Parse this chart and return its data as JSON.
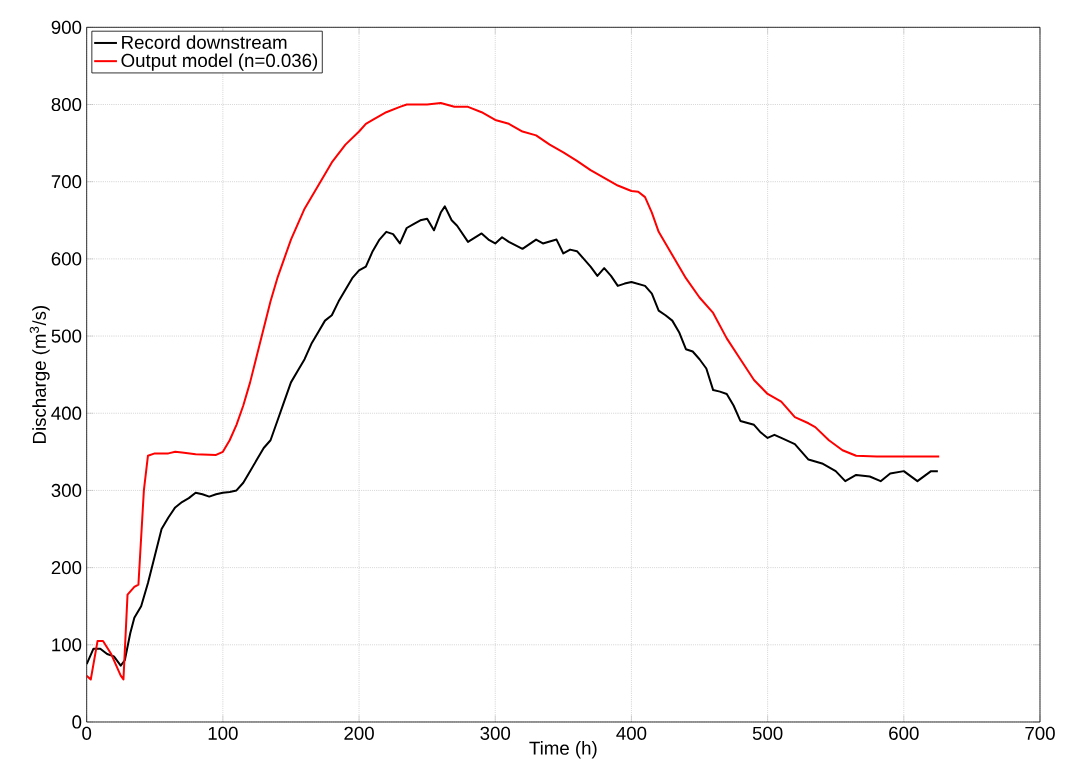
{
  "chart_data": {
    "type": "line",
    "xlabel": "Time (h)",
    "ylabel": "Discharge (m$^{3}$/s)",
    "xlim": [
      0,
      700
    ],
    "ylim": [
      0,
      900
    ],
    "xticks": [
      0,
      100,
      200,
      300,
      400,
      500,
      600,
      700
    ],
    "yticks": [
      0,
      100,
      200,
      300,
      400,
      500,
      600,
      700,
      800,
      900
    ],
    "grid": true,
    "legend": "top left",
    "line_style": "solid",
    "marker": "none",
    "series": [
      {
        "name": "Record downstream",
        "color": "#000000",
        "x": [
          0,
          5,
          10,
          15,
          20,
          25,
          28,
          32,
          35,
          40,
          45,
          50,
          55,
          60,
          65,
          70,
          75,
          80,
          85,
          90,
          95,
          100,
          105,
          110,
          115,
          120,
          125,
          130,
          135,
          140,
          145,
          150,
          155,
          160,
          165,
          170,
          175,
          180,
          185,
          190,
          195,
          200,
          205,
          210,
          215,
          220,
          225,
          230,
          235,
          240,
          245,
          250,
          255,
          260,
          263,
          268,
          272,
          280,
          290,
          295,
          300,
          305,
          310,
          320,
          330,
          335,
          345,
          350,
          355,
          360,
          365,
          370,
          375,
          380,
          385,
          390,
          395,
          400,
          410,
          415,
          420,
          425,
          430,
          435,
          440,
          445,
          450,
          455,
          460,
          465,
          470,
          475,
          480,
          490,
          495,
          500,
          505,
          510,
          520,
          530,
          540,
          550,
          557,
          565,
          575,
          583,
          590,
          600,
          610,
          620,
          625
        ],
        "values": [
          75,
          95,
          95,
          88,
          85,
          73,
          80,
          115,
          135,
          150,
          180,
          215,
          250,
          265,
          278,
          285,
          290,
          297,
          295,
          292,
          295,
          297,
          298,
          300,
          310,
          325,
          340,
          355,
          365,
          390,
          415,
          440,
          455,
          470,
          490,
          505,
          520,
          527,
          545,
          560,
          575,
          585,
          590,
          610,
          625,
          635,
          632,
          620,
          640,
          645,
          650,
          652,
          637,
          660,
          668,
          650,
          643,
          622,
          633,
          625,
          620,
          628,
          622,
          613,
          625,
          620,
          625,
          607,
          612,
          610,
          600,
          590,
          578,
          588,
          578,
          565,
          568,
          570,
          565,
          555,
          533,
          527,
          520,
          505,
          483,
          480,
          470,
          458,
          430,
          428,
          425,
          410,
          390,
          385,
          375,
          368,
          372,
          368,
          360,
          340,
          335,
          325,
          312,
          320,
          318,
          312,
          322,
          325,
          312,
          325,
          325
        ]
      },
      {
        "name": "Output model (n=0.036)",
        "color": "#ff0000",
        "x": [
          0,
          3,
          8,
          12,
          18,
          25,
          27,
          30,
          35,
          38,
          42,
          45,
          50,
          60,
          65,
          70,
          80,
          95,
          100,
          105,
          110,
          115,
          120,
          125,
          130,
          135,
          140,
          145,
          150,
          160,
          170,
          180,
          190,
          200,
          205,
          210,
          220,
          230,
          235,
          250,
          260,
          270,
          280,
          290,
          300,
          310,
          320,
          330,
          340,
          350,
          360,
          370,
          380,
          390,
          400,
          405,
          410,
          415,
          420,
          430,
          440,
          450,
          460,
          470,
          480,
          490,
          500,
          510,
          520,
          530,
          535,
          545,
          555,
          565,
          580,
          600,
          626
        ],
        "values": [
          60,
          55,
          105,
          105,
          88,
          60,
          55,
          165,
          175,
          178,
          300,
          345,
          348,
          348,
          350,
          349,
          347,
          346,
          350,
          365,
          385,
          410,
          440,
          475,
          510,
          545,
          575,
          600,
          625,
          665,
          695,
          725,
          748,
          765,
          775,
          780,
          790,
          797,
          800,
          800,
          802,
          797,
          797,
          790,
          780,
          775,
          765,
          760,
          748,
          738,
          727,
          715,
          705,
          695,
          688,
          687,
          680,
          660,
          635,
          605,
          575,
          550,
          530,
          497,
          470,
          443,
          425,
          415,
          395,
          387,
          382,
          365,
          352,
          345,
          344,
          344,
          344
        ]
      }
    ]
  }
}
